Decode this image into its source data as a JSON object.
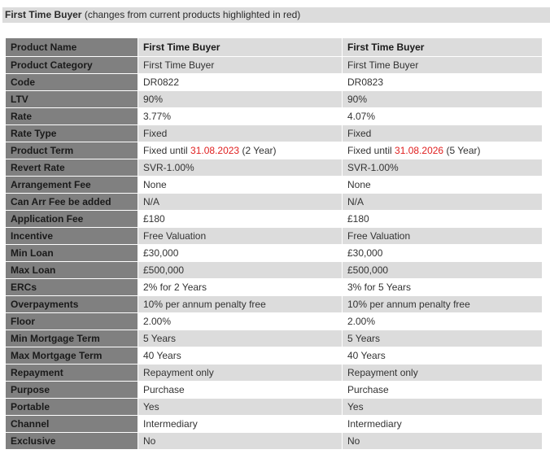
{
  "heading": {
    "title": "First Time Buyer",
    "subtitle": "(changes from current products highlighted in red)"
  },
  "colors": {
    "highlight": "#e02020",
    "label_column": "#808080",
    "shaded_row": "#dcdcdc"
  },
  "columns": {
    "label": "Product Name",
    "product_a": "First Time Buyer",
    "product_b": "First Time Buyer"
  },
  "rows": [
    {
      "label": "Product Category",
      "a": "First Time Buyer",
      "b": "First Time Buyer"
    },
    {
      "label": "Code",
      "a": "DR0822",
      "b": "DR0823"
    },
    {
      "label": "LTV",
      "a": "90%",
      "b": "90%"
    },
    {
      "label": "Rate",
      "a": "3.77%",
      "b": "4.07%"
    },
    {
      "label": "Rate Type",
      "a": "Fixed",
      "b": "Fixed"
    },
    {
      "label": "Product Term",
      "a": {
        "prefix": "Fixed until",
        "date": "31.08.2023",
        "suffix": "(2 Year)"
      },
      "b": {
        "prefix": "Fixed until",
        "date": "31.08.2026",
        "suffix": "(5 Year)"
      }
    },
    {
      "label": "Revert Rate",
      "a": "SVR-1.00%",
      "b": "SVR-1.00%"
    },
    {
      "label": "Arrangement Fee",
      "a": "None",
      "b": "None"
    },
    {
      "label": "Can Arr Fee be added",
      "a": "N/A",
      "b": "N/A"
    },
    {
      "label": "Application Fee",
      "a": "£180",
      "b": "£180"
    },
    {
      "label": "Incentive",
      "a": "Free Valuation",
      "b": "Free Valuation"
    },
    {
      "label": "Min Loan",
      "a": "£30,000",
      "b": "£30,000"
    },
    {
      "label": "Max Loan",
      "a": "£500,000",
      "b": "£500,000"
    },
    {
      "label": "ERCs",
      "a": "2% for 2 Years",
      "b": "3% for 5 Years"
    },
    {
      "label": "Overpayments",
      "a": "10% per annum penalty free",
      "b": "10% per annum penalty free"
    },
    {
      "label": "Floor",
      "a": "2.00%",
      "b": "2.00%"
    },
    {
      "label": "Min Mortgage Term",
      "a": "5 Years",
      "b": "5 Years"
    },
    {
      "label": "Max Mortgage Term",
      "a": "40 Years",
      "b": "40 Years"
    },
    {
      "label": "Repayment",
      "a": "Repayment only",
      "b": "Repayment only"
    },
    {
      "label": "Purpose",
      "a": "Purchase",
      "b": "Purchase"
    },
    {
      "label": "Portable",
      "a": "Yes",
      "b": "Yes"
    },
    {
      "label": "Channel",
      "a": "Intermediary",
      "b": "Intermediary"
    },
    {
      "label": "Exclusive",
      "a": "No",
      "b": "No"
    }
  ]
}
